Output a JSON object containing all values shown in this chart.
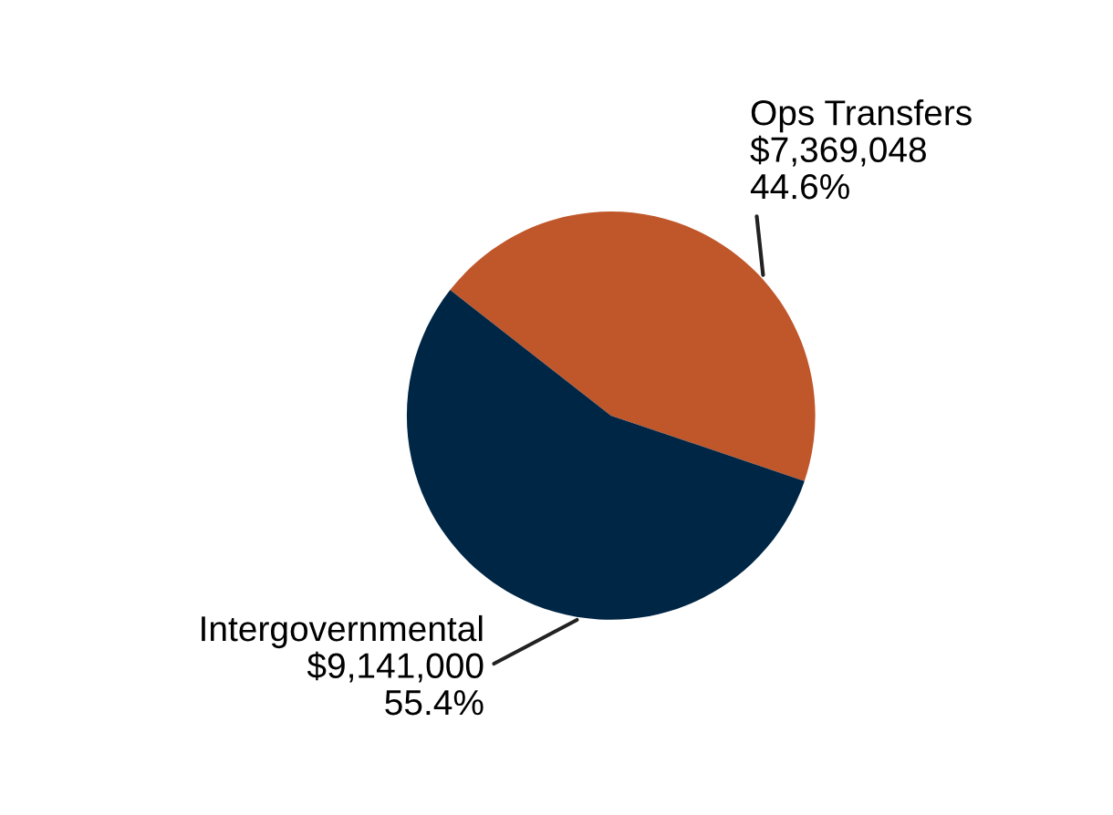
{
  "chart_data": {
    "type": "pie",
    "categories": [
      "Ops Transfers",
      "Intergovernmental"
    ],
    "values": [
      7369048,
      9141000
    ],
    "colors": [
      "#c0572b",
      "#002645"
    ],
    "value_labels": [
      "$7,369,048\n44.6%",
      "$9,141,000\n55.4%"
    ],
    "legend": false
  }
}
